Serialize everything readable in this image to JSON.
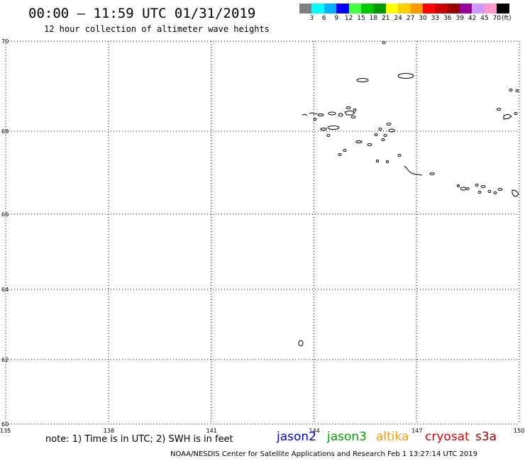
{
  "title": "00:00 – 11:59 UTC 01/31/2019",
  "subtitle": "12 hour collection of altimeter wave heights",
  "scale": {
    "unit_label": "(ft)",
    "colors": [
      "#7f7f7f",
      "#00ffff",
      "#00b0ff",
      "#0000ff",
      "#44ff44",
      "#00cc00",
      "#009900",
      "#ffff00",
      "#ffcc00",
      "#ff9900",
      "#ff0000",
      "#cc0000",
      "#990000",
      "#990099",
      "#cc99ff",
      "#ff99cc",
      "#000000"
    ],
    "labels": [
      "3",
      "6",
      "9",
      "12",
      "15",
      "18",
      "21",
      "24",
      "27",
      "30",
      "33",
      "36",
      "39",
      "42",
      "45",
      "70"
    ]
  },
  "map": {
    "lon_min": 135,
    "lon_max": 150,
    "lat_min": 60,
    "lat_max": 70,
    "lon_ticks": [
      "135",
      "138",
      "141",
      "144",
      "147",
      "150"
    ],
    "lat_ticks": [
      "70",
      "68",
      "66",
      "64",
      "62",
      "60"
    ]
  },
  "note": "note: 1) Time is in UTC; 2) SWH is in feet",
  "satellites": [
    {
      "name": "jason2",
      "color": "#0000dd"
    },
    {
      "name": "jason3",
      "color": "#00a000"
    },
    {
      "name": "altika",
      "color": "#ff9900"
    },
    {
      "name": "cryosat",
      "color": "#dd0000"
    },
    {
      "name": "s3a",
      "color": "#990000"
    }
  ],
  "credit": "NOAA/NESDIS Center for Satellite Applications and Research    Feb  1 13:27:14 UTC 2019"
}
